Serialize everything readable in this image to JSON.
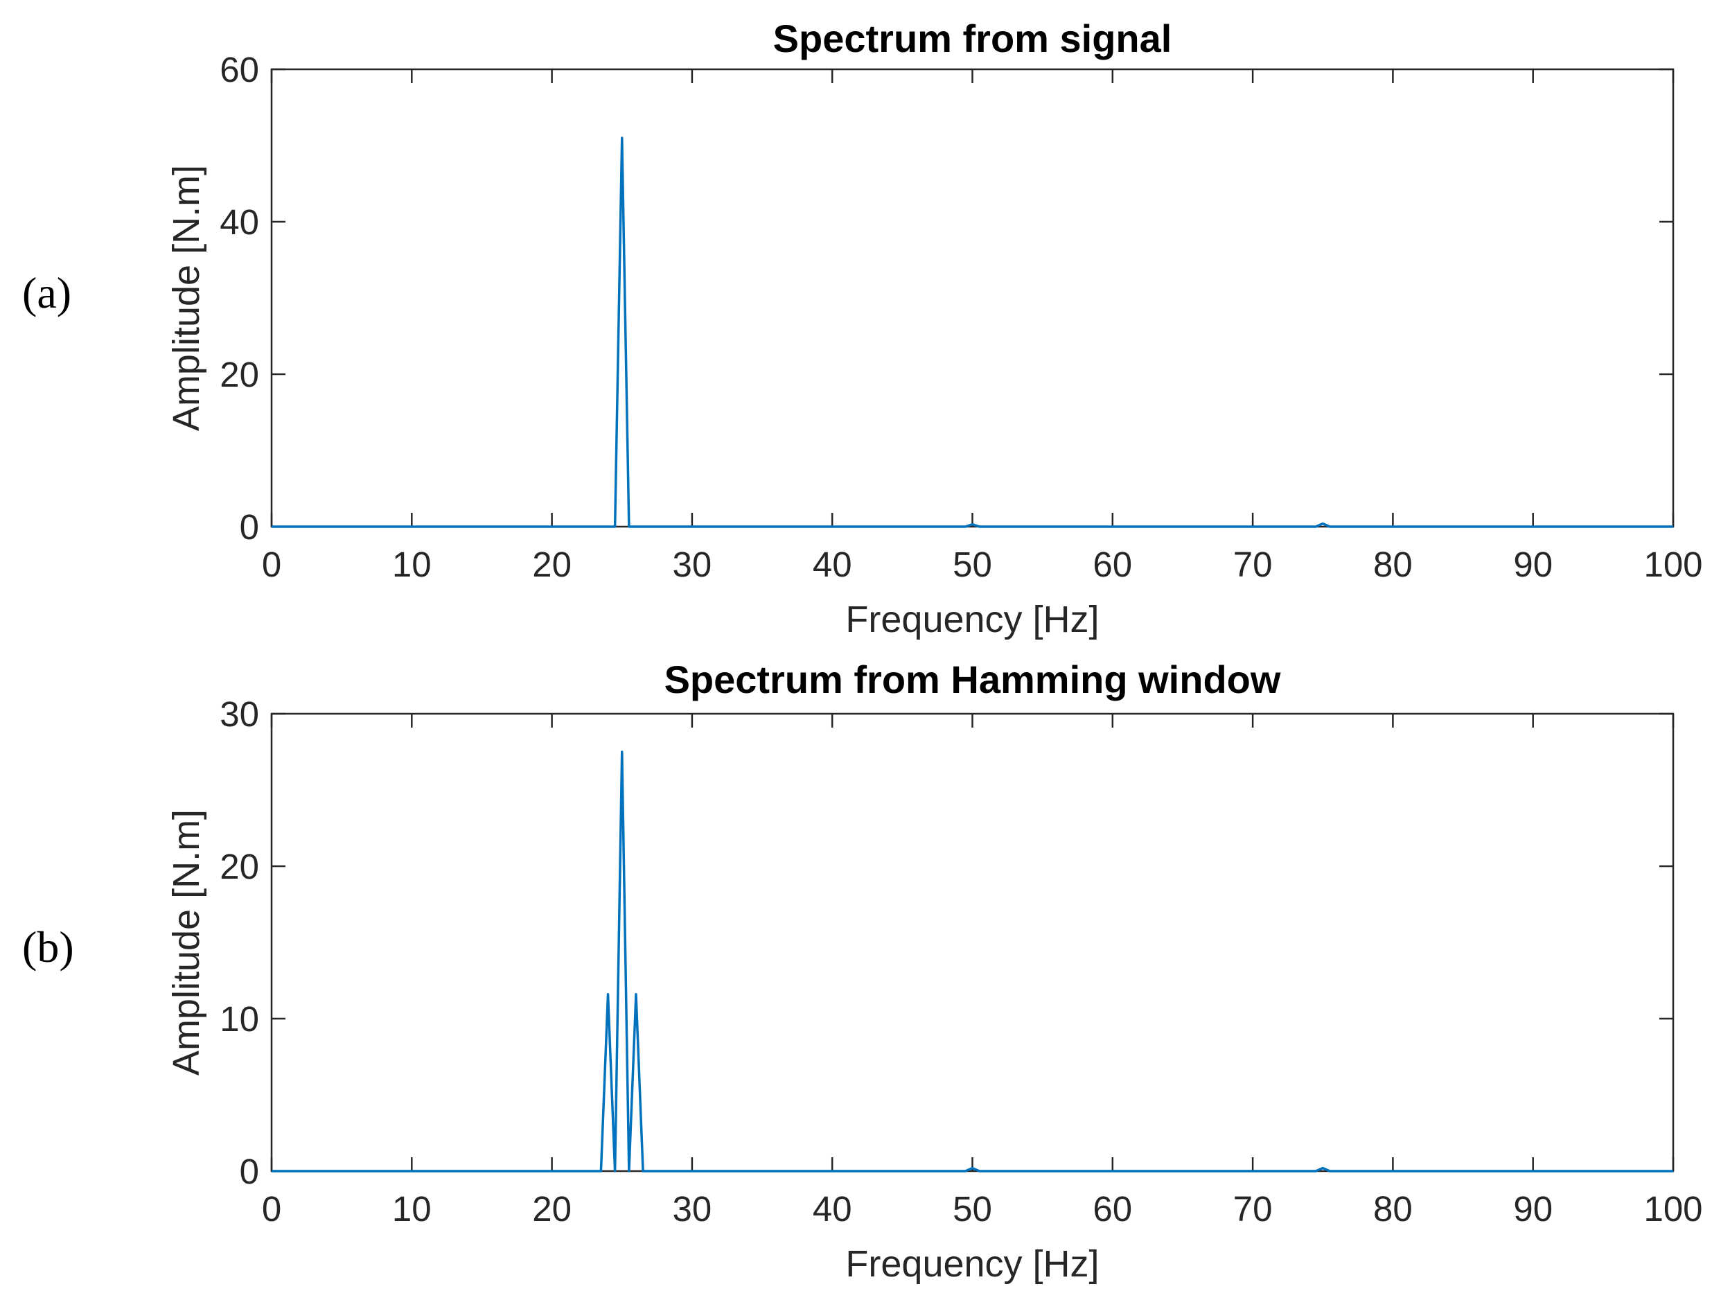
{
  "panel_labels": [
    "(a)",
    "(b)"
  ],
  "colors": {
    "series": "#0072BD",
    "axes": "#262626"
  },
  "chart_data": [
    {
      "type": "line",
      "title": "Spectrum from signal",
      "xlabel": "Frequency [Hz]",
      "ylabel": "Amplitude [N.m]",
      "xlim": [
        0,
        100
      ],
      "ylim": [
        0,
        60
      ],
      "xticks": [
        0,
        10,
        20,
        30,
        40,
        50,
        60,
        70,
        80,
        90,
        100
      ],
      "yticks": [
        0,
        20,
        40,
        60
      ],
      "grid": false,
      "series": [
        {
          "x": [
            0,
            24.5,
            25,
            25.5,
            49.5,
            50,
            50.5,
            74.5,
            75,
            75.5,
            100
          ],
          "y": [
            0,
            0,
            51,
            0,
            0,
            0.3,
            0,
            0,
            0.4,
            0,
            0
          ]
        }
      ]
    },
    {
      "type": "line",
      "title": "Spectrum from Hamming window",
      "xlabel": "Frequency [Hz]",
      "ylabel": "Amplitude [N.m]",
      "xlim": [
        0,
        100
      ],
      "ylim": [
        0,
        30
      ],
      "xticks": [
        0,
        10,
        20,
        30,
        40,
        50,
        60,
        70,
        80,
        90,
        100
      ],
      "yticks": [
        0,
        10,
        20,
        30
      ],
      "grid": false,
      "series": [
        {
          "x": [
            0,
            23.5,
            24,
            24.5,
            25,
            25.5,
            26,
            26.5,
            49.5,
            50,
            50.5,
            74.5,
            75,
            75.5,
            100
          ],
          "y": [
            0,
            0,
            11.6,
            0,
            27.5,
            0,
            11.6,
            0,
            0,
            0.2,
            0,
            0,
            0.2,
            0,
            0
          ]
        }
      ]
    }
  ]
}
